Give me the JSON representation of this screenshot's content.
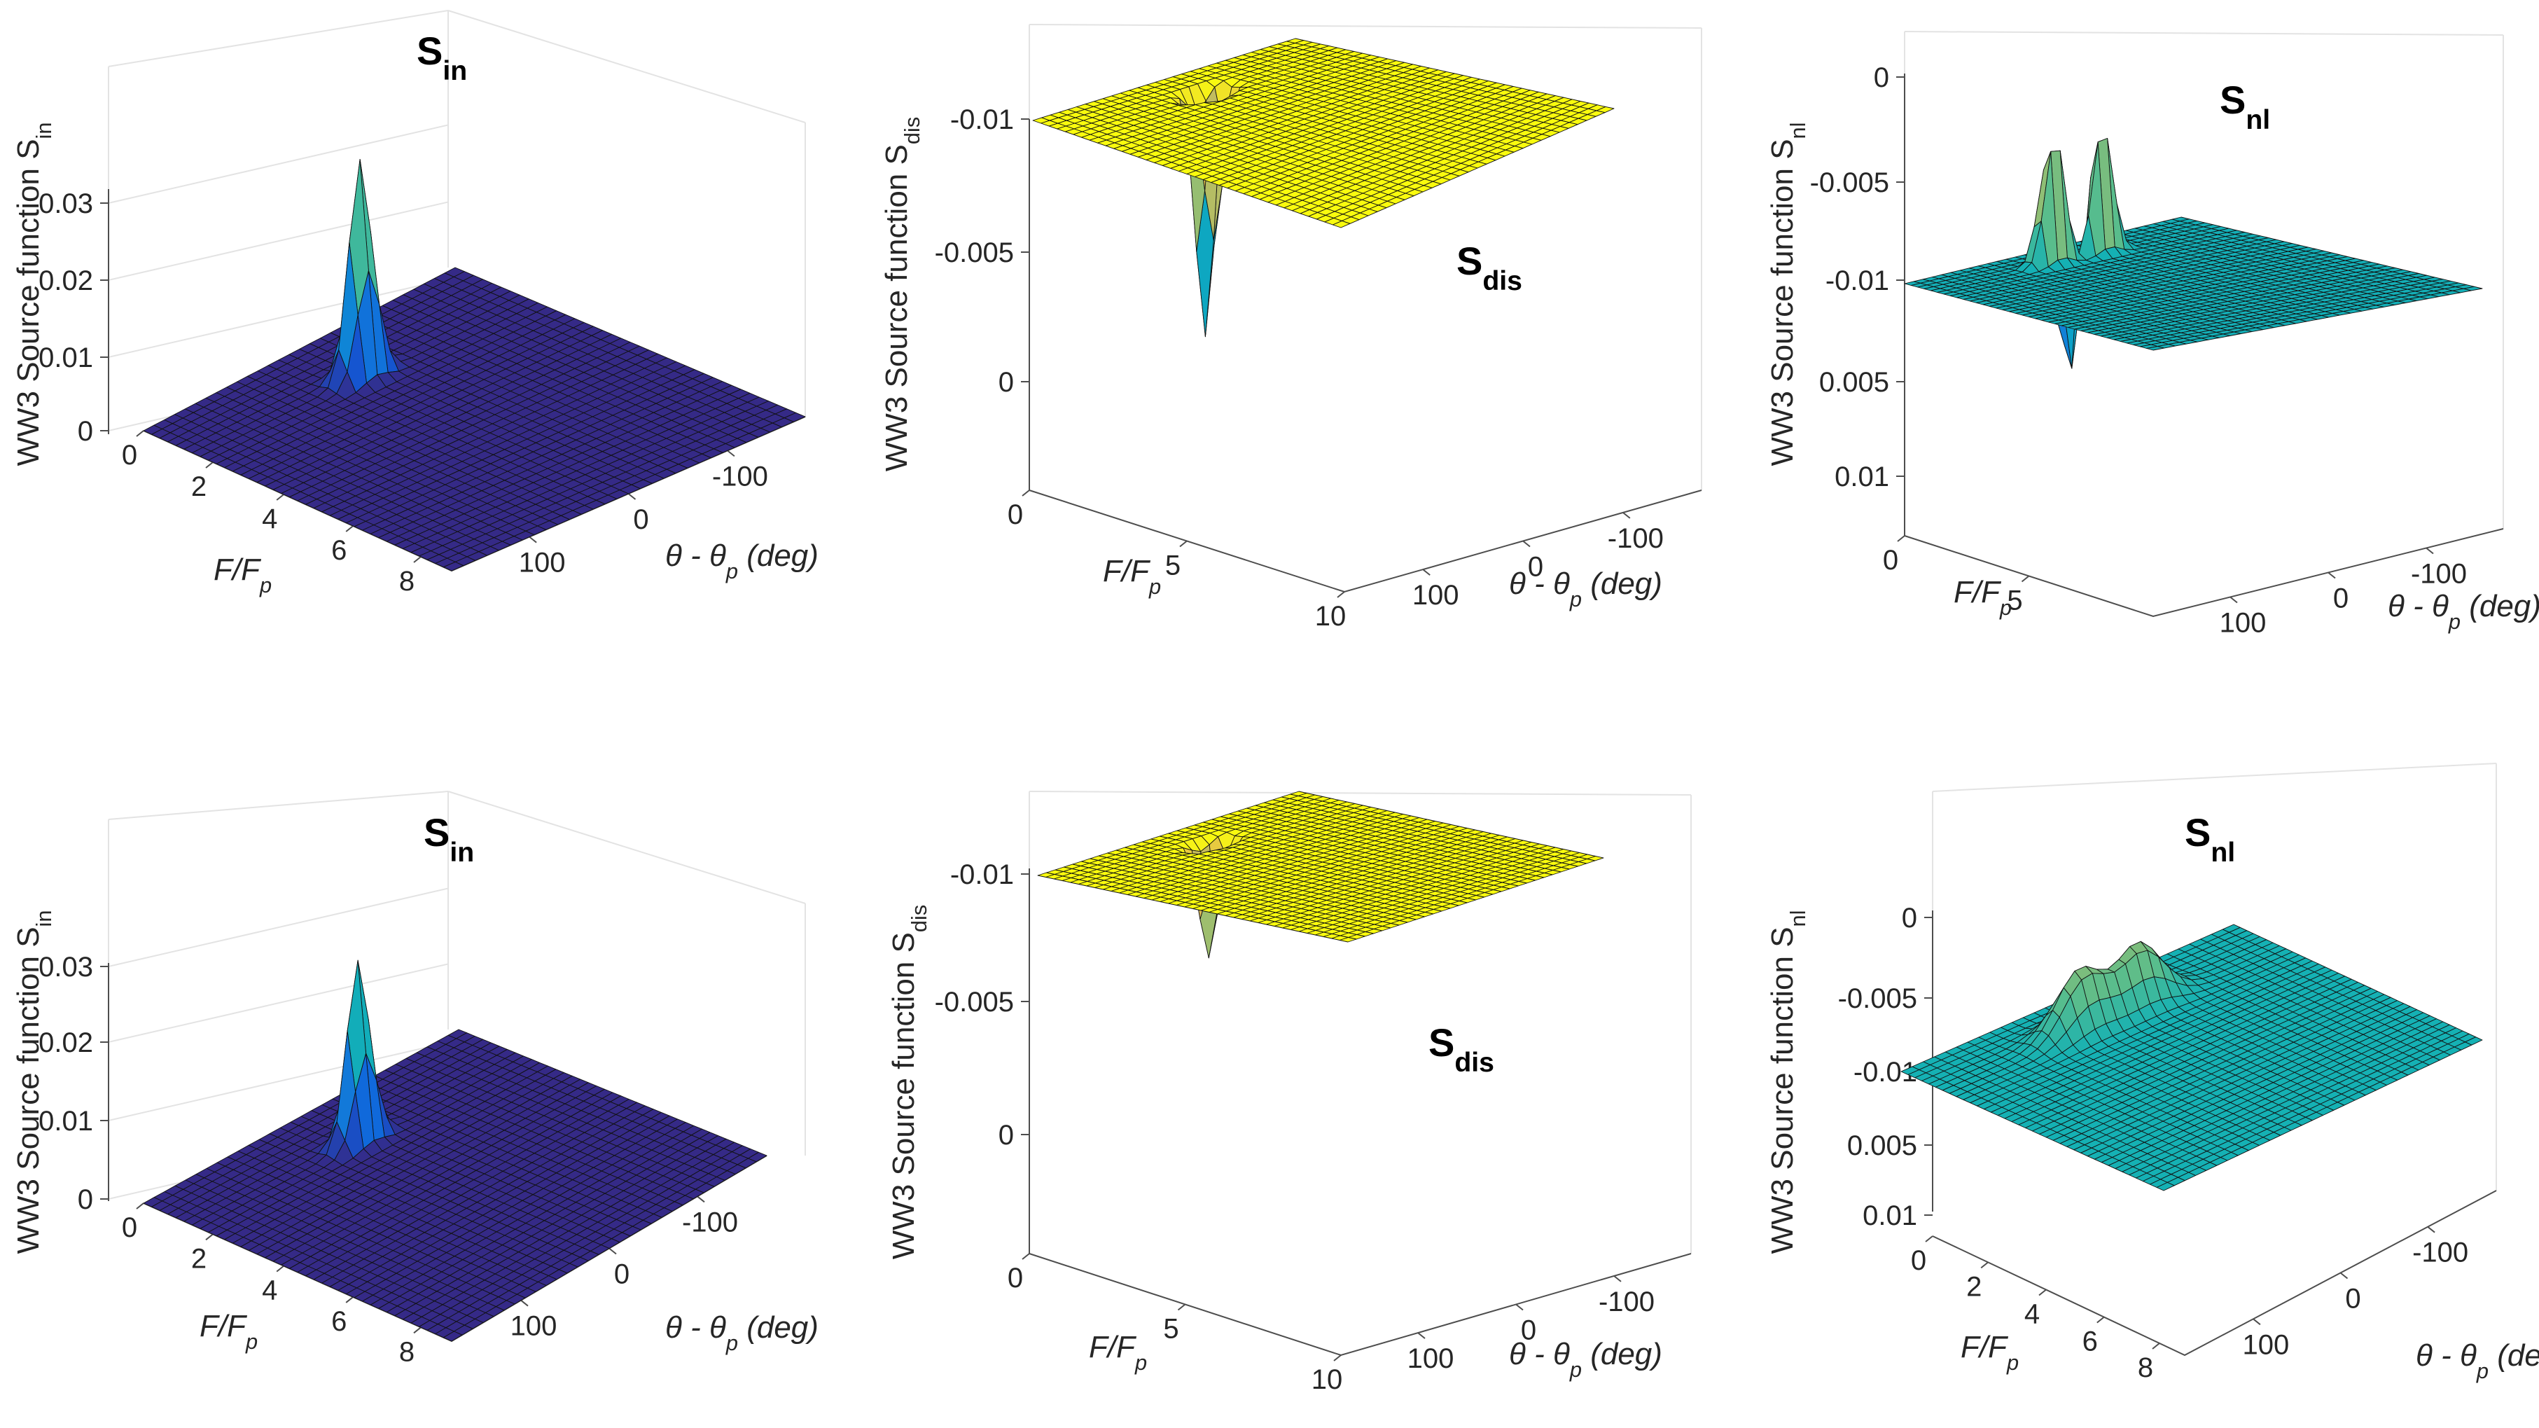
{
  "chart_data": [
    {
      "type": "surface",
      "panel": "top-left",
      "title_main": "S",
      "title_sub": "in",
      "zlabel_main": "WW3 Source function S",
      "zlabel_sub": "in",
      "xlabel_main": "F/F",
      "xlabel_sub": "p",
      "ylabel_main": "θ - θ",
      "ylabel_sub": "p",
      "ylabel_unit": " (deg)",
      "x_ticks": [
        "0",
        "2",
        "4",
        "6",
        "8"
      ],
      "y_ticks": [
        "100",
        "0",
        "-100"
      ],
      "z_ticks": [
        "0",
        "0.01",
        "0.02",
        "0.03"
      ],
      "xlim": [
        0,
        8
      ],
      "ylim": [
        -180,
        180
      ],
      "zlim": [
        0,
        0.035
      ],
      "colormap": "parula",
      "peaks": [
        {
          "x": 1.5,
          "y": 0,
          "z": 0.033,
          "kind": "spike"
        }
      ],
      "grid": true
    },
    {
      "type": "surface",
      "panel": "top-middle",
      "title_main": "S",
      "title_sub": "dis",
      "zlabel_main": "WW3 Source function S",
      "zlabel_sub": "dis",
      "xlabel_main": "F/F",
      "xlabel_sub": "p",
      "ylabel_main": "θ - θ",
      "ylabel_sub": "p",
      "ylabel_unit": " (deg)",
      "x_ticks": [
        "0",
        "5",
        "10"
      ],
      "y_ticks": [
        "100",
        "0",
        "-100"
      ],
      "z_ticks": [
        "-0.01",
        "-0.005",
        "0"
      ],
      "xlim": [
        0,
        10
      ],
      "ylim": [
        -180,
        180
      ],
      "zlim": [
        -0.0125,
        0
      ],
      "colormap": "parula",
      "peaks": [
        {
          "x": 1.4,
          "y": 0,
          "z": -0.0123,
          "kind": "spike"
        }
      ],
      "grid": true
    },
    {
      "type": "surface",
      "panel": "top-right",
      "title_main": "S",
      "title_sub": "nl",
      "zlabel_main": "WW3 Source function S",
      "zlabel_sub": "nl",
      "xlabel_main": "F/F",
      "xlabel_sub": "p",
      "ylabel_main": "θ - θ",
      "ylabel_sub": "p",
      "ylabel_unit": " (deg)",
      "x_ticks": [
        "0",
        "5"
      ],
      "y_ticks": [
        "100",
        "0",
        "-100"
      ],
      "z_ticks": [
        "-0.01",
        "-0.005",
        "0",
        "0.005",
        "0.01"
      ],
      "xlim": [
        0,
        10
      ],
      "ylim": [
        -180,
        180
      ],
      "zlim": [
        -0.011,
        0.0115
      ],
      "colormap": "parula",
      "peaks": [
        {
          "x": 1.2,
          "y": -30,
          "z": 0.0115,
          "kind": "spike"
        },
        {
          "x": 1.2,
          "y": 30,
          "z": 0.0115,
          "kind": "spike"
        },
        {
          "x": 0.95,
          "y": 0,
          "z": -0.0105,
          "kind": "spike"
        }
      ],
      "grid": true
    },
    {
      "type": "surface",
      "panel": "bottom-left",
      "title_main": "S",
      "title_sub": "in",
      "zlabel_main": "WW3 Source function S",
      "zlabel_sub": "in",
      "xlabel_main": "F/F",
      "xlabel_sub": "p",
      "ylabel_main": "θ - θ",
      "ylabel_sub": "p",
      "ylabel_unit": " (deg)",
      "x_ticks": [
        "0",
        "2",
        "4",
        "6",
        "8"
      ],
      "y_ticks": [
        "100",
        "0",
        "-100"
      ],
      "z_ticks": [
        "0",
        "0.01",
        "0.02",
        "0.03"
      ],
      "xlim": [
        0,
        8
      ],
      "ylim": [
        -180,
        180
      ],
      "zlim": [
        0,
        0.035
      ],
      "colormap": "parula",
      "peaks": [
        {
          "x": 1.5,
          "y": 0,
          "z": 0.0275,
          "kind": "spike"
        }
      ],
      "grid": true
    },
    {
      "type": "surface",
      "panel": "bottom-middle",
      "title_main": "S",
      "title_sub": "dis",
      "zlabel_main": "WW3 Source function S",
      "zlabel_sub": "dis",
      "xlabel_main": "F/F",
      "xlabel_sub": "p",
      "ylabel_main": "θ - θ",
      "ylabel_sub": "p",
      "ylabel_unit": " (deg)",
      "x_ticks": [
        "0",
        "5",
        "10"
      ],
      "y_ticks": [
        "100",
        "0",
        "-100"
      ],
      "z_ticks": [
        "-0.01",
        "-0.005",
        "0"
      ],
      "xlim": [
        0,
        10
      ],
      "ylim": [
        -180,
        180
      ],
      "zlim": [
        -0.0125,
        0
      ],
      "colormap": "parula",
      "peaks": [
        {
          "x": 1.4,
          "y": 0,
          "z": -0.0058,
          "kind": "spike"
        }
      ],
      "grid": true
    },
    {
      "type": "surface",
      "panel": "bottom-right",
      "title_main": "S",
      "title_sub": "nl",
      "zlabel_main": "WW3 Source function S",
      "zlabel_sub": "nl",
      "xlabel_main": "F/F",
      "xlabel_sub": "p",
      "ylabel_main": "θ - θ",
      "ylabel_sub": "p",
      "ylabel_unit": " (deg)",
      "x_ticks": [
        "0",
        "2",
        "4",
        "6",
        "8"
      ],
      "y_ticks": [
        "100",
        "0",
        "-100"
      ],
      "z_ticks": [
        "-0.01",
        "-0.005",
        "0",
        "0.005",
        "0.01"
      ],
      "xlim": [
        0,
        8
      ],
      "ylim": [
        -180,
        180
      ],
      "zlim": [
        -0.011,
        0.011
      ],
      "colormap": "parula",
      "peaks": [
        {
          "x": 1.3,
          "y": -30,
          "z": 0.0045,
          "kind": "bump"
        },
        {
          "x": 1.3,
          "y": 30,
          "z": 0.0045,
          "kind": "bump"
        },
        {
          "x": 1.0,
          "y": 0,
          "z": -0.0015,
          "kind": "bump"
        }
      ],
      "grid": true
    }
  ]
}
